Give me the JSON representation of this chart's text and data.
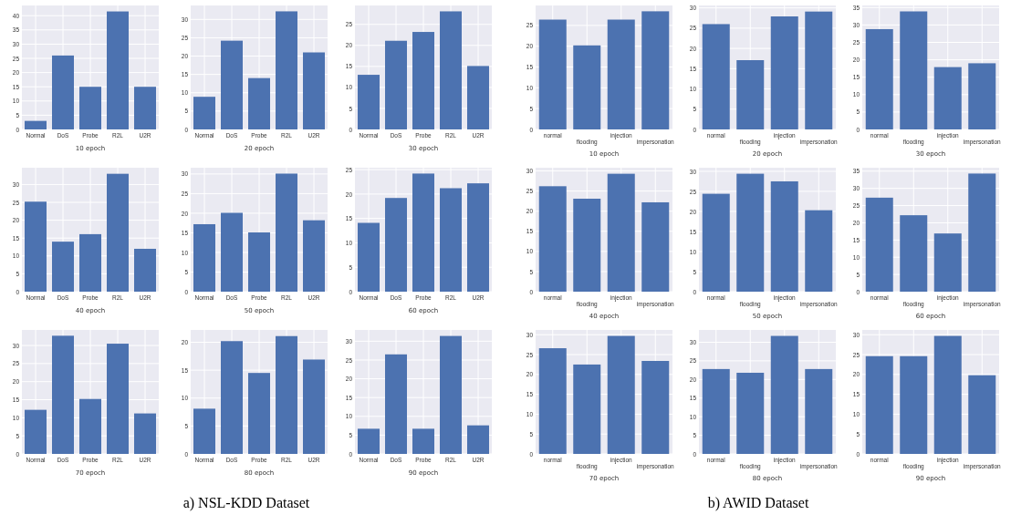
{
  "chart_data": [
    {
      "type": "bar",
      "xlabel": "10 epoch",
      "categories": [
        "Normal",
        "DoS",
        "Probe",
        "R2L",
        "U2R"
      ],
      "values": [
        3,
        26,
        15,
        41.5,
        15
      ],
      "color": "#4c72b0",
      "ylim": [
        0,
        43.6
      ],
      "yticks": [
        0,
        5,
        10,
        15,
        20,
        25,
        30,
        35,
        40
      ],
      "grid": true,
      "annotations": [
        "a)  NSL-KDD  Dataset"
      ]
    },
    {
      "type": "bar",
      "xlabel": "20 epoch",
      "categories": [
        "Normal",
        "DoS",
        "Probe",
        "R2L",
        "U2R"
      ],
      "values": [
        8.9,
        24.2,
        14,
        32.2,
        21
      ],
      "color": "#4c72b0",
      "ylim": [
        0,
        33.8
      ],
      "yticks": [
        0,
        5,
        10,
        15,
        20,
        25,
        30
      ],
      "grid": true
    },
    {
      "type": "bar",
      "xlabel": "30 epoch",
      "categories": [
        "Normal",
        "DoS",
        "Probe",
        "R2L",
        "U2R"
      ],
      "values": [
        13,
        21.1,
        23.2,
        28.1,
        15.1
      ],
      "color": "#4c72b0",
      "ylim": [
        0,
        29.5
      ],
      "yticks": [
        0,
        5,
        10,
        15,
        20,
        25
      ],
      "grid": true
    },
    {
      "type": "bar",
      "xlabel": "10 epoch",
      "categories": [
        "normal",
        "flooding",
        "injection",
        "impersonation"
      ],
      "values": [
        26.4,
        20.2,
        26.4,
        28.4
      ],
      "color": "#4c72b0",
      "ylim": [
        0,
        29.8
      ],
      "yticks": [
        0,
        5,
        10,
        15,
        20,
        25
      ],
      "grid": true,
      "annotations": [
        "b)  AWID  Dataset"
      ]
    },
    {
      "type": "bar",
      "xlabel": "20 epoch",
      "categories": [
        "normal",
        "flooding",
        "injection",
        "impersonation"
      ],
      "values": [
        26,
        17.1,
        27.9,
        29.1
      ],
      "color": "#4c72b0",
      "ylim": [
        0,
        30.6
      ],
      "yticks": [
        0,
        5,
        10,
        15,
        20,
        25,
        30
      ],
      "grid": true
    },
    {
      "type": "bar",
      "xlabel": "30 epoch",
      "categories": [
        "normal",
        "flooding",
        "injection",
        "impersonation"
      ],
      "values": [
        28.8,
        33.9,
        17.9,
        19
      ],
      "color": "#4c72b0",
      "ylim": [
        0,
        35.6
      ],
      "yticks": [
        0,
        5,
        10,
        15,
        20,
        25,
        30,
        35
      ],
      "grid": true
    },
    {
      "type": "bar",
      "xlabel": "40 epoch",
      "categories": [
        "Normal",
        "DoS",
        "Probe",
        "R2L",
        "U2R"
      ],
      "values": [
        25.2,
        14,
        16.1,
        33,
        12
      ],
      "color": "#4c72b0",
      "ylim": [
        0,
        34.7
      ],
      "yticks": [
        0,
        5,
        10,
        15,
        20,
        25,
        30
      ],
      "grid": true
    },
    {
      "type": "bar",
      "xlabel": "50 epoch",
      "categories": [
        "Normal",
        "DoS",
        "Probe",
        "R2L",
        "U2R"
      ],
      "values": [
        17.2,
        20.1,
        15.1,
        30.1,
        18.2
      ],
      "color": "#4c72b0",
      "ylim": [
        0,
        31.6
      ],
      "yticks": [
        0,
        5,
        10,
        15,
        20,
        25,
        30
      ],
      "grid": true
    },
    {
      "type": "bar",
      "xlabel": "60 epoch",
      "categories": [
        "Normal",
        "DoS",
        "Probe",
        "R2L",
        "U2R"
      ],
      "values": [
        14.1,
        19.2,
        24.2,
        21.2,
        22.2
      ],
      "color": "#4c72b0",
      "ylim": [
        0,
        25.4
      ],
      "yticks": [
        0,
        5,
        10,
        15,
        20,
        25
      ],
      "grid": true
    },
    {
      "type": "bar",
      "xlabel": "40 epoch",
      "categories": [
        "normal",
        "flooding",
        "injection",
        "impersonation"
      ],
      "values": [
        26.2,
        23.1,
        29.3,
        22.2
      ],
      "color": "#4c72b0",
      "ylim": [
        0,
        30.8
      ],
      "yticks": [
        0,
        5,
        10,
        15,
        20,
        25,
        30
      ],
      "grid": true
    },
    {
      "type": "bar",
      "xlabel": "50 epoch",
      "categories": [
        "normal",
        "flooding",
        "injection",
        "impersonation"
      ],
      "values": [
        24.4,
        29.4,
        27.5,
        20.3
      ],
      "color": "#4c72b0",
      "ylim": [
        0,
        30.9
      ],
      "yticks": [
        0,
        5,
        10,
        15,
        20,
        25,
        30
      ],
      "grid": true
    },
    {
      "type": "bar",
      "xlabel": "60 epoch",
      "categories": [
        "normal",
        "flooding",
        "injection",
        "impersonation"
      ],
      "values": [
        27.3,
        22.2,
        16.9,
        34.3
      ],
      "color": "#4c72b0",
      "ylim": [
        0,
        36
      ],
      "yticks": [
        0,
        5,
        10,
        15,
        20,
        25,
        30,
        35
      ],
      "grid": true
    },
    {
      "type": "bar",
      "xlabel": "70 epoch",
      "categories": [
        "Normal",
        "DoS",
        "Probe",
        "R2L",
        "U2R"
      ],
      "values": [
        12.2,
        32.7,
        15.2,
        30.5,
        11.2
      ],
      "color": "#4c72b0",
      "ylim": [
        0,
        34.3
      ],
      "yticks": [
        0,
        5,
        10,
        15,
        20,
        25,
        30
      ],
      "grid": true
    },
    {
      "type": "bar",
      "xlabel": "80 epoch",
      "categories": [
        "Normal",
        "DoS",
        "Probe",
        "R2L",
        "U2R"
      ],
      "values": [
        8.1,
        20.2,
        14.5,
        21.1,
        16.9
      ],
      "color": "#4c72b0",
      "ylim": [
        0,
        22.2
      ],
      "yticks": [
        0,
        5,
        10,
        15,
        20
      ],
      "grid": true
    },
    {
      "type": "bar",
      "xlabel": "90 epoch",
      "categories": [
        "Normal",
        "DoS",
        "Probe",
        "R2L",
        "U2R"
      ],
      "values": [
        6.7,
        26.5,
        6.7,
        31.4,
        7.6
      ],
      "color": "#4c72b0",
      "ylim": [
        0,
        33
      ],
      "yticks": [
        0,
        5,
        10,
        15,
        20,
        25,
        30
      ],
      "grid": true
    },
    {
      "type": "bar",
      "xlabel": "70 epoch",
      "categories": [
        "normal",
        "flooding",
        "injection",
        "impersonation"
      ],
      "values": [
        26.6,
        22.5,
        29.7,
        23.4
      ],
      "color": "#4c72b0",
      "ylim": [
        0,
        31.2
      ],
      "yticks": [
        0,
        5,
        10,
        15,
        20,
        25,
        30
      ],
      "grid": true
    },
    {
      "type": "bar",
      "xlabel": "80 epoch",
      "categories": [
        "normal",
        "flooding",
        "injection",
        "impersonation"
      ],
      "values": [
        22.8,
        21.8,
        31.7,
        22.8
      ],
      "color": "#4c72b0",
      "ylim": [
        0,
        33.3
      ],
      "yticks": [
        0,
        5,
        10,
        15,
        20,
        25,
        30
      ],
      "grid": true
    },
    {
      "type": "bar",
      "xlabel": "90 epoch",
      "categories": [
        "normal",
        "flooding",
        "injection",
        "impersonation"
      ],
      "values": [
        24.6,
        24.6,
        29.7,
        19.8
      ],
      "color": "#4c72b0",
      "ylim": [
        0,
        31.2
      ],
      "yticks": [
        0,
        5,
        10,
        15,
        20,
        25,
        30
      ],
      "grid": true
    }
  ]
}
